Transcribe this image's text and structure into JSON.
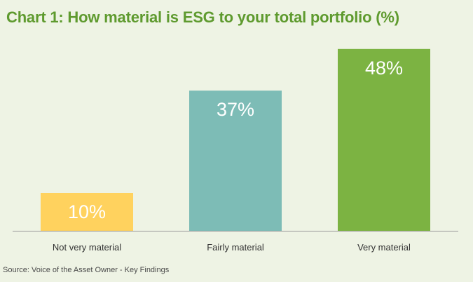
{
  "header": {
    "title": "Chart 1: How material is ESG to your total portfolio (%)"
  },
  "footer": {
    "source": "Source: Voice of the Asset Owner - Key Findings"
  },
  "chart_data": {
    "type": "bar",
    "title": "Chart 1: How material is ESG to your total portfolio (%)",
    "categories": [
      "Not very material",
      "Fairly material",
      "Very material"
    ],
    "values": [
      10,
      37,
      48
    ],
    "data_labels": [
      "10%",
      "37%",
      "48%"
    ],
    "colors": [
      "#ffd25e",
      "#7dbcb6",
      "#7cb342"
    ],
    "xlabel": "",
    "ylabel": "",
    "ylim": [
      0,
      50
    ],
    "grid": false,
    "legend": "none"
  },
  "colors": {
    "title": "#5e9a2e",
    "background": "#eef3e4",
    "baseline": "#9a9a9a",
    "data_label": "#ffffff"
  }
}
